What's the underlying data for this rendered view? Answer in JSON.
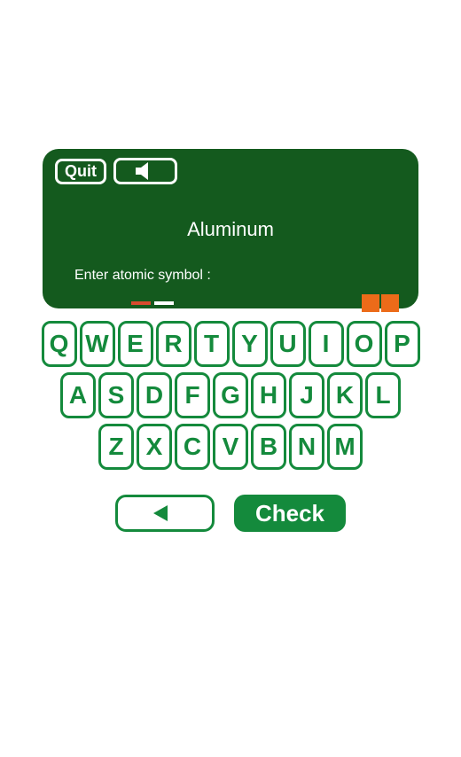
{
  "panel": {
    "quit_label": "Quit",
    "element_name": "Aluminum",
    "prompt_text": "Enter atomic symbol :",
    "background_color": "#145a1e",
    "text_color": "#ffffff",
    "dash_colors": [
      "#d84b2f",
      "#ffffff"
    ],
    "block_color": "#ec6b19"
  },
  "keyboard": {
    "rows": [
      [
        "Q",
        "W",
        "E",
        "R",
        "T",
        "Y",
        "U",
        "I",
        "O",
        "P"
      ],
      [
        "A",
        "S",
        "D",
        "F",
        "G",
        "H",
        "J",
        "K",
        "L"
      ],
      [
        "Z",
        "X",
        "C",
        "V",
        "B",
        "N",
        "M"
      ]
    ],
    "key_color": "#148a3c",
    "key_bg": "#ffffff"
  },
  "actions": {
    "check_label": "Check",
    "check_bg": "#148a3c",
    "check_text_color": "#ffffff",
    "back_border_color": "#148a3c"
  }
}
